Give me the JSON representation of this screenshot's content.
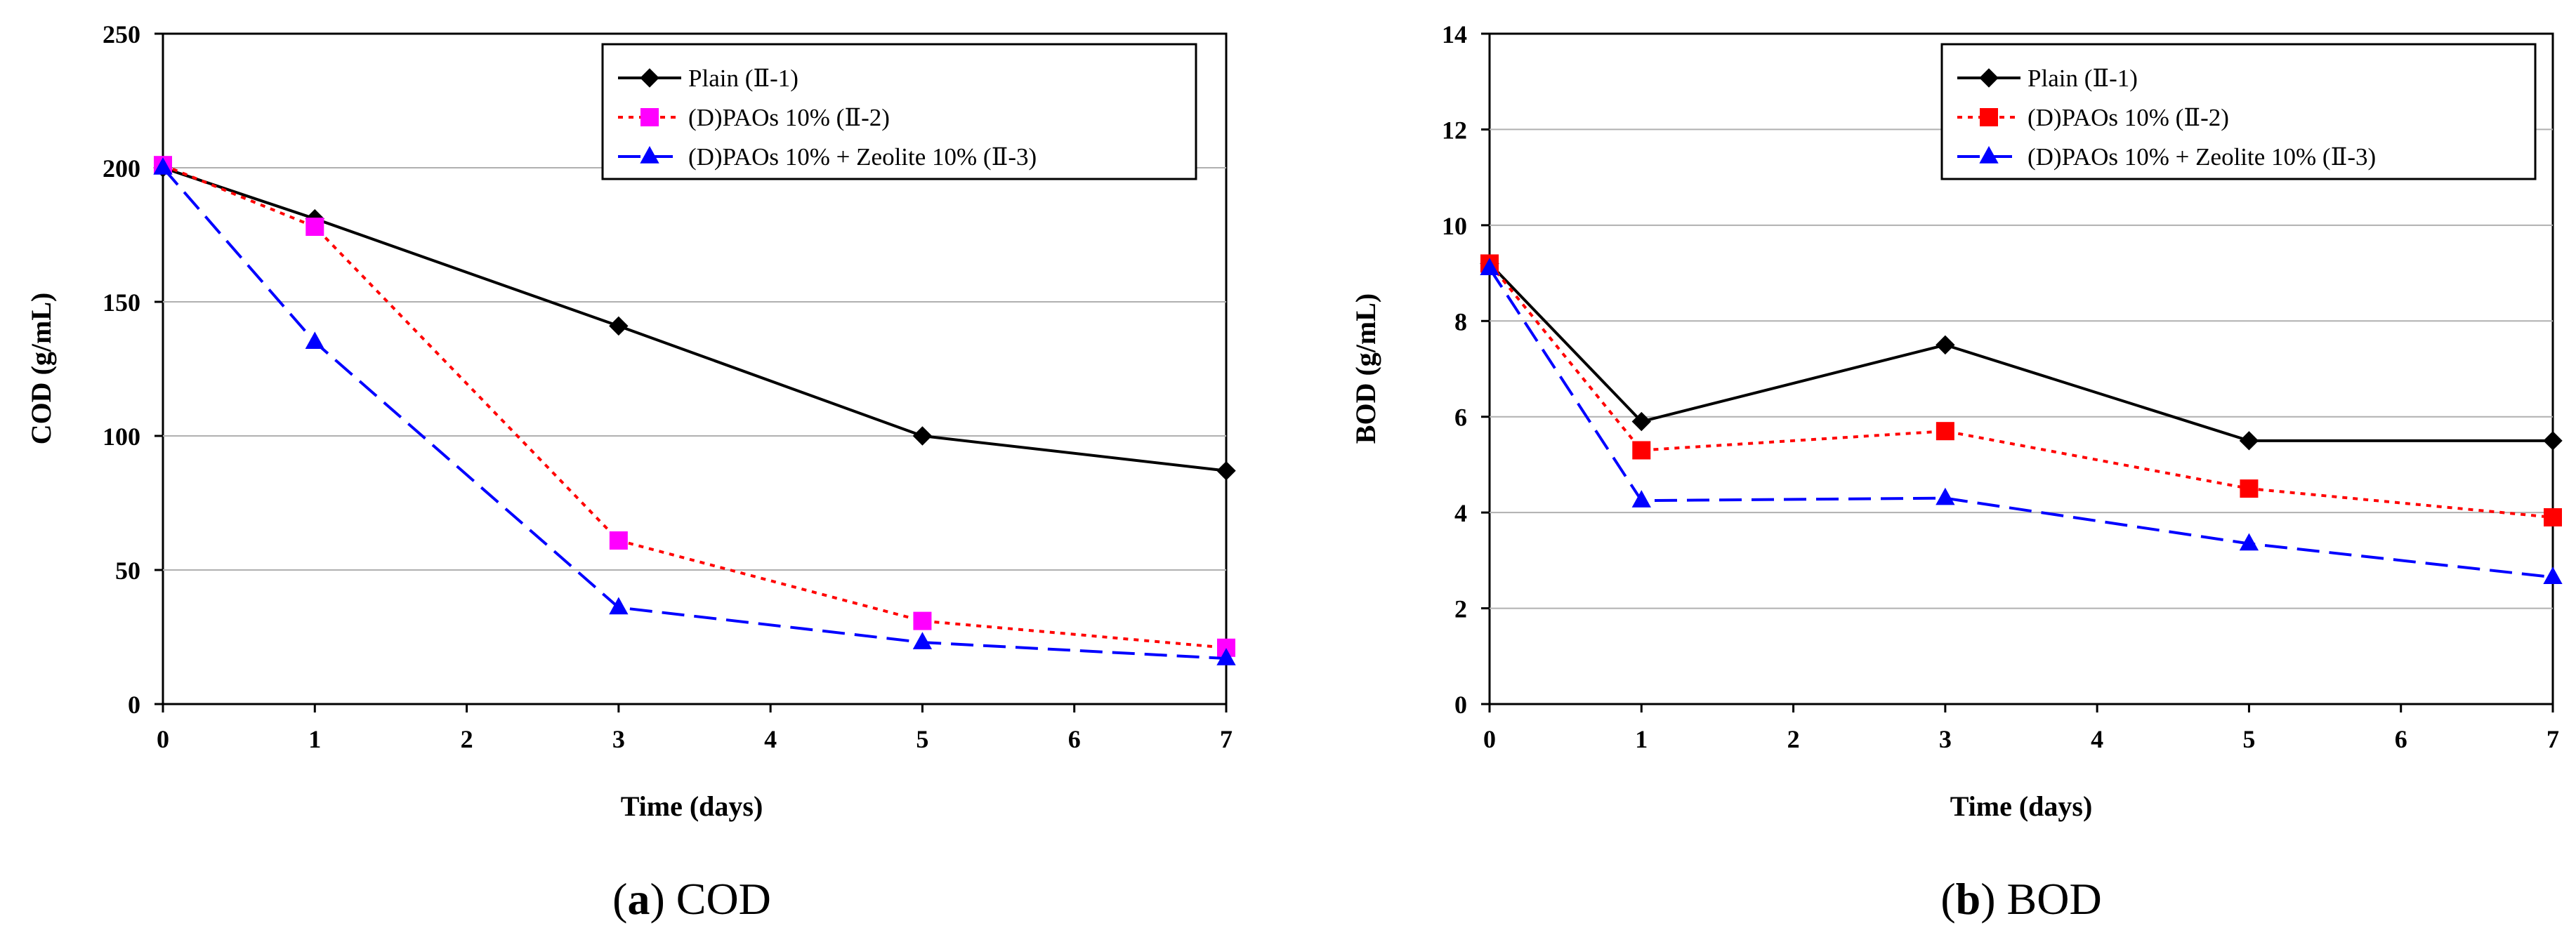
{
  "figure": {
    "colors": {
      "plain": "#000000",
      "paos": "#ff0000",
      "paos_marker_a": "#ff00ff",
      "zeolite": "#0000ff",
      "grid": "#b0b0b0",
      "frame": "#000000"
    }
  },
  "chart_data": [
    {
      "type": "line",
      "panel_id": "a",
      "caption_label": "a",
      "caption_text": "COD",
      "title": "",
      "xlabel": "Time (days)",
      "ylabel": "COD (g/mL)",
      "xlim": [
        0,
        7
      ],
      "ylim": [
        0,
        250
      ],
      "xticks": [
        "0",
        "1",
        "2",
        "3",
        "4",
        "5",
        "6",
        "7"
      ],
      "yticks": [
        "0",
        "50",
        "100",
        "150",
        "200",
        "250"
      ],
      "x": [
        0,
        1,
        3,
        5,
        7
      ],
      "legend_position": "top-right",
      "series": [
        {
          "name": "Plain (Ⅱ-1)",
          "color": "#000000",
          "marker": "diamond",
          "dash": "solid",
          "values": [
            200,
            181,
            141,
            100,
            87
          ]
        },
        {
          "name": "(D)PAOs 10% (Ⅱ-2)",
          "color": "#ff0000",
          "marker_color": "#ff00ff",
          "marker": "square",
          "dash": "dotted",
          "values": [
            201,
            178,
            61,
            31,
            21
          ]
        },
        {
          "name": "(D)PAOs 10% + Zeolite 10% (Ⅱ-3)",
          "color": "#0000ff",
          "marker": "triangle",
          "dash": "dashed",
          "values": [
            200,
            135,
            36,
            23,
            17
          ]
        }
      ]
    },
    {
      "type": "line",
      "panel_id": "b",
      "caption_label": "b",
      "caption_text": "BOD",
      "title": "",
      "xlabel": "Time (days)",
      "ylabel": "BOD (g/mL)",
      "xlim": [
        0,
        7
      ],
      "ylim": [
        0,
        14
      ],
      "xticks": [
        "0",
        "1",
        "2",
        "3",
        "4",
        "5",
        "6",
        "7"
      ],
      "yticks": [
        "0",
        "2",
        "4",
        "6",
        "8",
        "10",
        "12",
        "14"
      ],
      "x": [
        0,
        1,
        3,
        5,
        7
      ],
      "legend_position": "top-right",
      "series": [
        {
          "name": "Plain (Ⅱ-1)",
          "color": "#000000",
          "marker": "diamond",
          "dash": "solid",
          "values": [
            9.2,
            5.9,
            7.5,
            5.5,
            5.5
          ]
        },
        {
          "name": "(D)PAOs 10% (Ⅱ-2)",
          "color": "#ff0000",
          "marker_color": "#ff0000",
          "marker": "square",
          "dash": "dotted",
          "values": [
            9.2,
            5.3,
            5.7,
            4.5,
            3.9
          ]
        },
        {
          "name": "(D)PAOs 10% + Zeolite 10% (Ⅱ-3)",
          "color": "#0000ff",
          "marker": "triangle",
          "dash": "dashed",
          "values": [
            9.1,
            4.25,
            4.3,
            3.35,
            2.65
          ]
        }
      ]
    }
  ]
}
